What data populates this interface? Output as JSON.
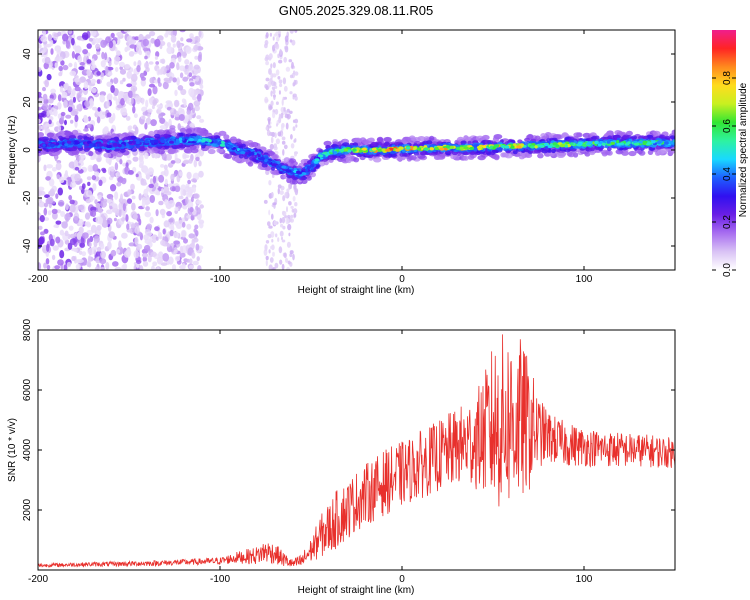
{
  "title": "GN05.2025.329.08.11.R05",
  "colors": {
    "snr_line": "#e8302c",
    "colormap": [
      "#ffffff",
      "#d9c2f5",
      "#a86ef0",
      "#6a1fe6",
      "#3010f0",
      "#1e60ff",
      "#19d9ff",
      "#2ef2a0",
      "#33e633",
      "#c8f020",
      "#ffdc1e",
      "#ff8a1e",
      "#ff2424",
      "#f01e8c"
    ]
  },
  "chart_data": [
    {
      "type": "heatmap",
      "xlabel": "Height of straight line (km)",
      "ylabel": "Frequency (Hz)",
      "xlim": [
        -200,
        150
      ],
      "ylim": [
        -50,
        50
      ],
      "xticks": [
        -200,
        -100,
        0,
        100
      ],
      "xtick_labels": [
        "-200",
        "-100",
        "0",
        "100"
      ],
      "yticks": [
        -40,
        -20,
        0,
        20,
        40
      ],
      "ytick_labels": [
        "-40",
        "-20",
        "0",
        "20",
        "40"
      ],
      "colorbar": {
        "label": "Normalized spectral amplitude",
        "range": [
          0,
          1
        ],
        "ticks": [
          0.0,
          0.2,
          0.4,
          0.6,
          0.8
        ],
        "tick_labels": [
          "0.0",
          "0.2",
          "0.4",
          "0.6",
          "0.8"
        ]
      },
      "ridge": {
        "x": [
          -200,
          -180,
          -160,
          -140,
          -120,
          -110,
          -100,
          -90,
          -80,
          -70,
          -60,
          -55,
          -50,
          -45,
          -40,
          -30,
          -20,
          -10,
          0,
          20,
          40,
          60,
          80,
          100,
          120,
          150
        ],
        "freq": [
          2,
          3,
          2,
          3,
          4,
          4,
          3,
          0,
          -2,
          -6,
          -9,
          -10,
          -7,
          -3,
          -1,
          0,
          0,
          0,
          0.5,
          1,
          1,
          1.5,
          2,
          2.5,
          3,
          3
        ],
        "amplitude": [
          0.3,
          0.35,
          0.3,
          0.35,
          0.4,
          0.45,
          0.45,
          0.4,
          0.35,
          0.35,
          0.4,
          0.35,
          0.4,
          0.45,
          0.5,
          0.6,
          0.7,
          0.8,
          0.75,
          0.7,
          0.75,
          0.7,
          0.65,
          0.6,
          0.55,
          0.5
        ]
      },
      "noise_region": {
        "x_range": [
          -200,
          -110
        ],
        "freq_range": [
          -50,
          50
        ]
      },
      "stripe_region": {
        "x_range": [
          -75,
          -58
        ],
        "freq_range": [
          -50,
          50
        ]
      }
    },
    {
      "type": "line",
      "xlabel": "Height of straight line (km)",
      "ylabel": "SNR (10 * v/v)",
      "xlim": [
        -200,
        150
      ],
      "ylim": [
        0,
        8000
      ],
      "xticks": [
        -200,
        -100,
        0,
        100
      ],
      "xtick_labels": [
        "-200",
        "-100",
        "0",
        "100"
      ],
      "yticks": [
        2000,
        4000,
        6000,
        8000
      ],
      "ytick_labels": [
        "2000",
        "4000",
        "6000",
        "8000"
      ],
      "series": [
        {
          "x": [
            -200,
            -180,
            -160,
            -140,
            -120,
            -100,
            -90,
            -80,
            -75,
            -70,
            -65,
            -60,
            -55,
            -50,
            -45,
            -40,
            -35,
            -30,
            -25,
            -20,
            -15,
            -10,
            -5,
            0,
            5,
            10,
            15,
            20,
            25,
            30,
            35,
            40,
            45,
            50,
            55,
            60,
            65,
            70,
            75,
            80,
            85,
            90,
            95,
            100,
            110,
            120,
            130,
            140,
            150
          ],
          "y": [
            150,
            180,
            200,
            220,
            260,
            300,
            420,
            480,
            620,
            560,
            350,
            200,
            300,
            650,
            1100,
            1400,
            1750,
            2000,
            2300,
            2500,
            2700,
            2900,
            3050,
            3200,
            3350,
            3500,
            3650,
            3800,
            3950,
            4100,
            4200,
            4300,
            4500,
            4800,
            4900,
            5000,
            4950,
            4800,
            4600,
            4450,
            4300,
            4200,
            4150,
            4100,
            4050,
            4000,
            4000,
            3950,
            3900
          ],
          "fluct": [
            60,
            70,
            80,
            90,
            100,
            120,
            200,
            300,
            400,
            350,
            250,
            150,
            250,
            400,
            700,
            900,
            1000,
            1000,
            1000,
            1050,
            1050,
            1100,
            1100,
            1100,
            1100,
            1150,
            1150,
            1200,
            1250,
            1300,
            1400,
            1600,
            2000,
            2800,
            3000,
            3000,
            2800,
            2200,
            1200,
            900,
            800,
            750,
            700,
            650,
            600,
            600,
            550,
            550,
            500
          ]
        }
      ]
    }
  ]
}
